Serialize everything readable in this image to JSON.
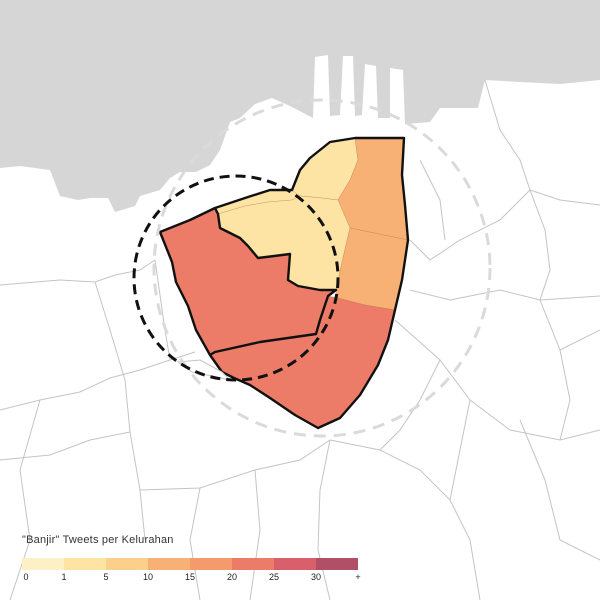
{
  "legend": {
    "title": "\"Banjir\" Tweets per Kelurahan",
    "bins": [
      {
        "label": "0",
        "color": "#fdf0c4"
      },
      {
        "label": "1",
        "color": "#fde3a4"
      },
      {
        "label": "5",
        "color": "#fbd08a"
      },
      {
        "label": "10",
        "color": "#f8b174"
      },
      {
        "label": "15",
        "color": "#f59a6c"
      },
      {
        "label": "20",
        "color": "#ec7c68"
      },
      {
        "label": "25",
        "color": "#d9606a"
      },
      {
        "label": "30",
        "color": "#b14f66"
      }
    ],
    "end_label": "+"
  },
  "colors": {
    "sea": "#d6d6d6",
    "land": "#ffffff",
    "boundary": "#c4c4c4",
    "focus_outline": "#111111",
    "outer_circle": "#dadada",
    "inner_circle": "#111111"
  },
  "districts": [
    {
      "id": "north-west-1",
      "bin": 1
    },
    {
      "id": "north-mid-1",
      "bin": 1
    },
    {
      "id": "north-east",
      "bin": 3
    },
    {
      "id": "center",
      "bin": 1
    },
    {
      "id": "east-1",
      "bin": 3
    },
    {
      "id": "east-2",
      "bin": 3
    },
    {
      "id": "west-large",
      "bin": 5
    },
    {
      "id": "south-large",
      "bin": 5
    }
  ]
}
